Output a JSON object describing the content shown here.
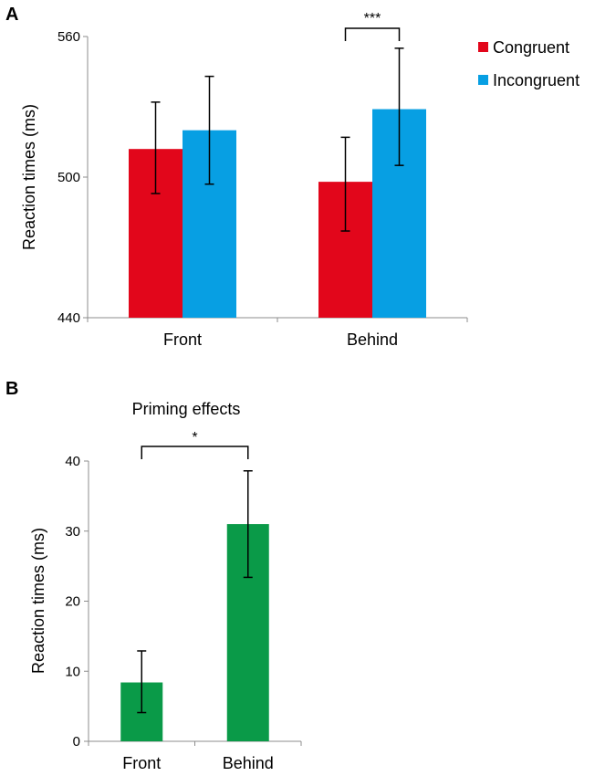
{
  "chart_data": [
    {
      "panel": "A",
      "type": "bar",
      "title": "",
      "xlabel": "",
      "ylabel": "Reaction times (ms)",
      "ylim": [
        440,
        560
      ],
      "yticks": [
        440,
        500,
        560
      ],
      "categories": [
        "Front",
        "Behind"
      ],
      "series": [
        {
          "name": "Congruent",
          "color": "#e2061b",
          "values": [
            512,
            498
          ],
          "err_low": [
            493,
            477
          ],
          "err_high": [
            532,
            517
          ]
        },
        {
          "name": "Incongruent",
          "color": "#079fe3",
          "values": [
            520,
            529
          ],
          "err_low": [
            497,
            505
          ],
          "err_high": [
            543,
            555
          ]
        }
      ],
      "legend": "top-right",
      "significance": {
        "label": "***",
        "category": "Behind"
      }
    },
    {
      "panel": "B",
      "type": "bar",
      "title": "Priming effects",
      "xlabel": "",
      "ylabel": "Reaction times (ms)",
      "ylim": [
        0,
        40
      ],
      "yticks": [
        0,
        10,
        20,
        30,
        40
      ],
      "categories": [
        "Front",
        "Behind"
      ],
      "series": [
        {
          "name": "Priming effect",
          "color": "#0a9a48",
          "values": [
            8.4,
            31
          ],
          "err_low": [
            4.1,
            23.4
          ],
          "err_high": [
            12.9,
            38.6
          ]
        }
      ],
      "legend": "none",
      "significance": {
        "label": "*",
        "between": [
          "Front",
          "Behind"
        ]
      }
    }
  ]
}
